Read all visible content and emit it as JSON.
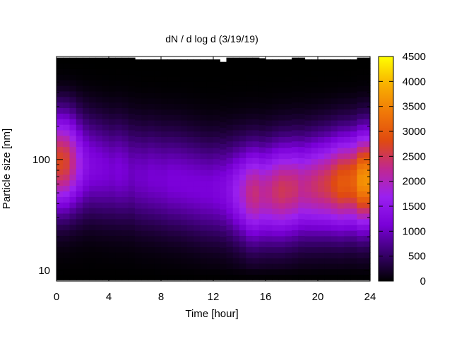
{
  "chart_data": {
    "type": "heatmap",
    "title": "dN / d log d (3/19/19)",
    "xlabel": "Time [hour]",
    "ylabel": "Particle size [nm]",
    "x_ticks": [
      0,
      4,
      8,
      12,
      16,
      20,
      24
    ],
    "xlim": [
      0,
      24
    ],
    "y_scale": "log",
    "y_ticks": [
      10,
      100
    ],
    "ylim": [
      8.0,
      850
    ],
    "colorbar": {
      "ticks": [
        0,
        500,
        1000,
        1500,
        2000,
        2500,
        3000,
        3500,
        4000,
        4500
      ],
      "range": [
        0,
        4500
      ],
      "colormap": [
        "#000000",
        "#3a0070",
        "#7a00d8",
        "#9a20f0",
        "#c02890",
        "#e04a10",
        "#f07808",
        "#f8b000",
        "#ffff00"
      ]
    },
    "times": [
      0,
      0.5,
      1,
      1.5,
      2,
      2.5,
      3,
      3.5,
      4,
      4.5,
      5,
      5.5,
      6,
      6.5,
      7,
      7.5,
      8,
      8.5,
      9,
      9.5,
      10,
      10.5,
      11,
      11.5,
      12,
      12.5,
      13,
      13.5,
      14,
      14.5,
      15,
      15.5,
      16,
      16.5,
      17,
      17.5,
      18,
      18.5,
      19,
      19.5,
      20,
      20.5,
      21,
      21.5,
      22,
      22.5,
      23,
      23.5,
      24
    ],
    "mode_amplitude": [
      2750,
      2650,
      2250,
      1750,
      1400,
      1250,
      1200,
      1150,
      1100,
      1150,
      1100,
      1000,
      1050,
      1050,
      1100,
      1100,
      1100,
      1150,
      1150,
      1150,
      1150,
      1150,
      1150,
      1150,
      1200,
      1250,
      1400,
      1650,
      1900,
      2250,
      2350,
      2200,
      2250,
      2400,
      2500,
      2450,
      2400,
      2250,
      2300,
      2400,
      2500,
      2600,
      2800,
      3000,
      3000,
      3100,
      3600,
      3650,
      3000
    ],
    "mode_center_nm": [
      95,
      95,
      95,
      92,
      90,
      88,
      85,
      82,
      80,
      80,
      78,
      75,
      72,
      70,
      70,
      68,
      66,
      65,
      64,
      62,
      60,
      58,
      56,
      55,
      55,
      54,
      53,
      52,
      51,
      50,
      50,
      50,
      51,
      52,
      53,
      54,
      55,
      56,
      57,
      58,
      59,
      60,
      61,
      62,
      63,
      64,
      65,
      66,
      66
    ],
    "mode_width_log10": 0.3,
    "upper_edge_nm": [
      830,
      830,
      830,
      830,
      830,
      830,
      830,
      830,
      830,
      830,
      830,
      830,
      800,
      800,
      800,
      800,
      800,
      800,
      800,
      800,
      800,
      800,
      800,
      800,
      800,
      760,
      830,
      830,
      830,
      830,
      830,
      820,
      800,
      800,
      800,
      800,
      830,
      830,
      800,
      800,
      800,
      800,
      800,
      800,
      800,
      800,
      830,
      830,
      830
    ],
    "lower_edge_nm": [
      8.2,
      8.2,
      8.2,
      8.2,
      8.2,
      8.2,
      8.2,
      8.2,
      8.2,
      8.2,
      8.2,
      8.2,
      8.2,
      8.2,
      8.2,
      8.2,
      8.2,
      8.2,
      8.2,
      8.2,
      8.2,
      8.2,
      8.2,
      8.2,
      8.2,
      8.2,
      8.2,
      8.2,
      8.2,
      8.2,
      8.2,
      8.2,
      8.2,
      8.2,
      8.2,
      8.2,
      8.2,
      8.2,
      8.2,
      8.2,
      8.2,
      8.2,
      8.2,
      8.2,
      8.2,
      8.2,
      8.2,
      8.2,
      8.2
    ]
  }
}
